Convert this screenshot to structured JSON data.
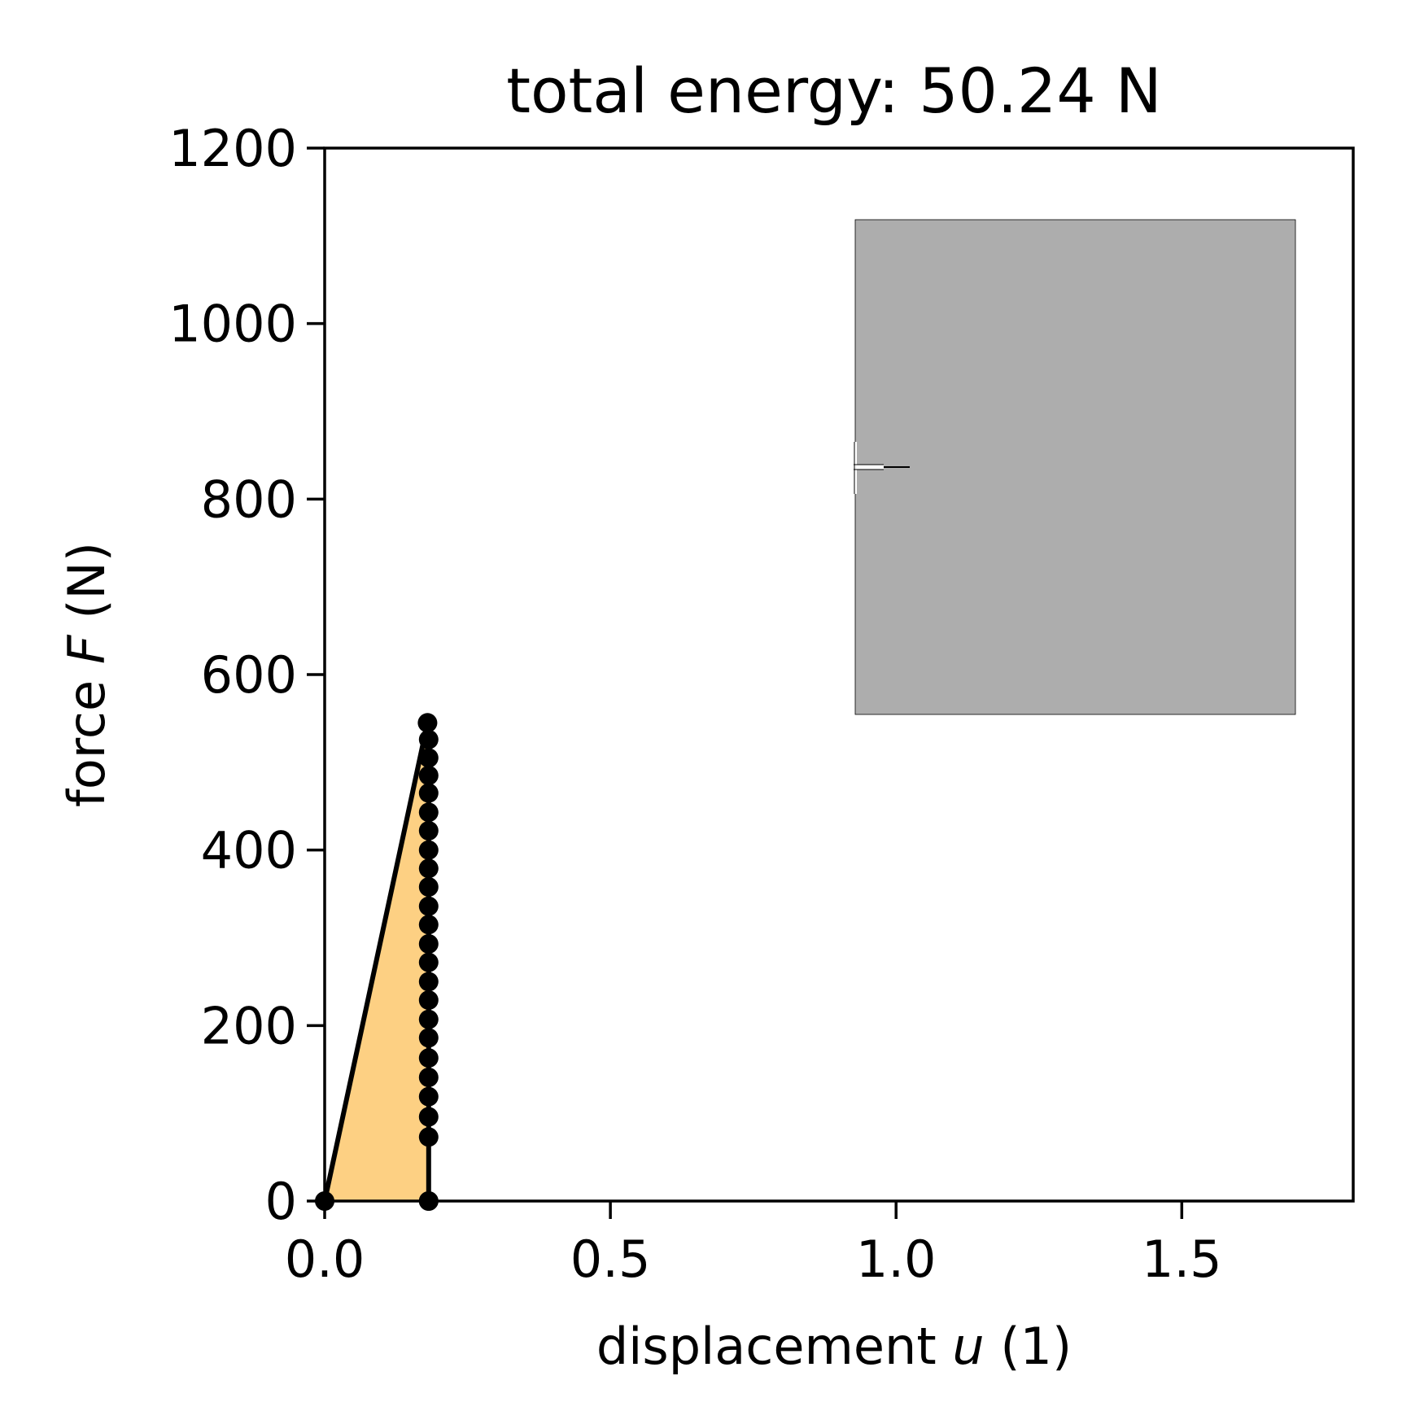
{
  "chart_data": {
    "type": "line",
    "title": "total energy: 50.24 N",
    "xlabel": {
      "prefix": "displacement ",
      "var": "u",
      "suffix": " (1)"
    },
    "ylabel": {
      "prefix": "force ",
      "var": "F",
      "suffix": " (N)"
    },
    "xlim": [
      0.0,
      1.8
    ],
    "ylim": [
      0,
      1200
    ],
    "xticks": [
      0.0,
      0.5,
      1.0,
      1.5
    ],
    "xtick_labels": [
      "0.0",
      "0.5",
      "1.0",
      "1.5"
    ],
    "yticks": [
      0,
      200,
      400,
      600,
      800,
      1000,
      1200
    ],
    "ytick_labels": [
      "0",
      "200",
      "400",
      "600",
      "800",
      "1000",
      "1200"
    ],
    "grid": false,
    "series": [
      {
        "x": [
          0.0,
          0.18,
          0.182,
          0.182,
          0.182,
          0.182,
          0.182,
          0.182,
          0.182,
          0.182,
          0.182,
          0.182,
          0.182,
          0.182,
          0.182,
          0.182,
          0.182,
          0.182,
          0.182,
          0.182,
          0.182,
          0.182,
          0.182,
          0.182,
          0.182,
          0.182
        ],
        "y": [
          0,
          545,
          526,
          505,
          485,
          465,
          443,
          422,
          400,
          379,
          358,
          336,
          315,
          293,
          272,
          250,
          229,
          207,
          186,
          163,
          141,
          119,
          96,
          73,
          0,
          0
        ],
        "color": "#000000",
        "fill": "#fdd083"
      }
    ],
    "inset": {
      "type": "specimen",
      "fill": "#adadad",
      "edge": "#000000",
      "notch": "edge crack on left side"
    }
  }
}
